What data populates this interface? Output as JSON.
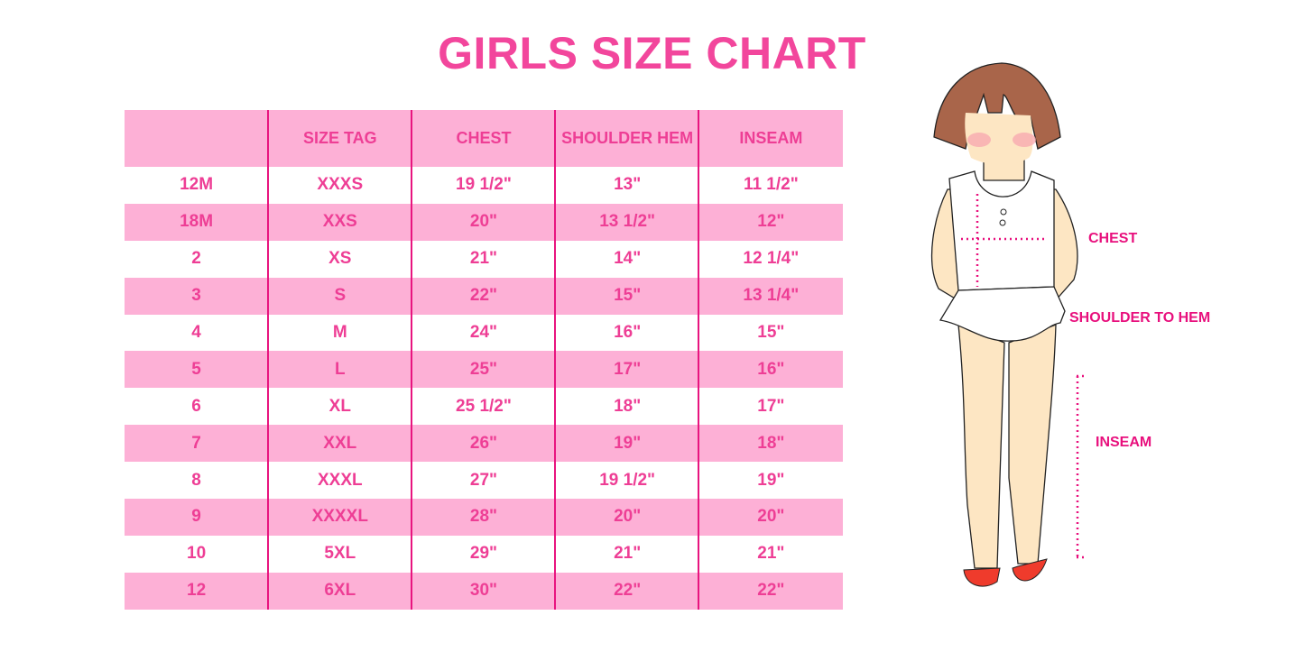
{
  "title": "GIRLS SIZE CHART",
  "table": {
    "headers": [
      "",
      "SIZE TAG",
      "CHEST",
      "SHOULDER HEM",
      "INSEAM"
    ],
    "rows": [
      [
        "12M",
        "XXXS",
        "19 1/2\"",
        "13\"",
        "11 1/2\""
      ],
      [
        "18M",
        "XXS",
        "20\"",
        "13 1/2\"",
        "12\""
      ],
      [
        "2",
        "XS",
        "21\"",
        "14\"",
        "12 1/4\""
      ],
      [
        "3",
        "S",
        "22\"",
        "15\"",
        "13 1/4\""
      ],
      [
        "4",
        "M",
        "24\"",
        "16\"",
        "15\""
      ],
      [
        "5",
        "L",
        "25\"",
        "17\"",
        "16\""
      ],
      [
        "6",
        "XL",
        "25 1/2\"",
        "18\"",
        "17\""
      ],
      [
        "7",
        "XXL",
        "26\"",
        "19\"",
        "18\""
      ],
      [
        "8",
        "XXXL",
        "27\"",
        "19 1/2\"",
        "19\""
      ],
      [
        "9",
        "XXXXL",
        "28\"",
        "20\"",
        "20\""
      ],
      [
        "10",
        "5XL",
        "29\"",
        "21\"",
        "21\""
      ],
      [
        "12",
        "6XL",
        "30\"",
        "22\"",
        "22\""
      ]
    ]
  },
  "figure": {
    "labels": {
      "chest": "CHEST",
      "shoulder_to_hem": "SHOULDER TO HEM",
      "inseam": "INSEAM"
    }
  },
  "colors": {
    "accent": "#f2469c",
    "band": "#fdb0d6",
    "divider": "#e8147f"
  }
}
